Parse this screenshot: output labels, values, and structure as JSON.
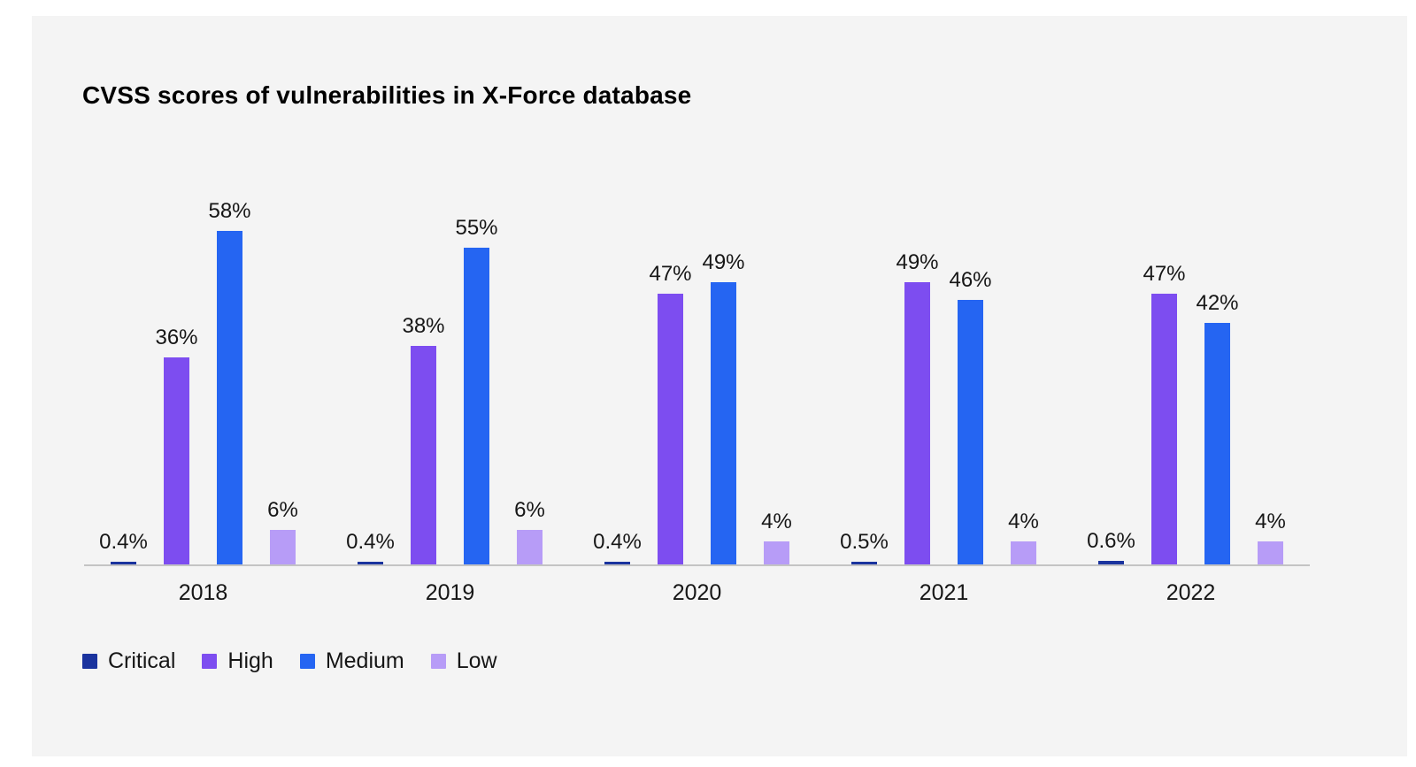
{
  "window": {
    "page_background": "#ffffff",
    "panel_background": "#f4f4f4",
    "axis_line_color": "#c4c4c4",
    "label_color": "#161616"
  },
  "chart_data": {
    "type": "bar",
    "title": "CVSS scores of vulnerabilities in X-Force database",
    "categories": [
      "2018",
      "2019",
      "2020",
      "2021",
      "2022"
    ],
    "series": [
      {
        "name": "Critical",
        "color": "#1a339e",
        "values": [
          0.4,
          0.4,
          0.4,
          0.5,
          0.6
        ],
        "labels": [
          "0.4%",
          "0.4%",
          "0.4%",
          "0.5%",
          "0.6%"
        ]
      },
      {
        "name": "High",
        "color": "#7d4df0",
        "values": [
          36,
          38,
          47,
          49,
          47
        ],
        "labels": [
          "36%",
          "38%",
          "47%",
          "49%",
          "47%"
        ]
      },
      {
        "name": "Medium",
        "color": "#2565f2",
        "values": [
          58,
          55,
          49,
          46,
          42
        ],
        "labels": [
          "58%",
          "55%",
          "49%",
          "46%",
          "42%"
        ]
      },
      {
        "name": "Low",
        "color": "#b79cf7",
        "values": [
          6,
          6,
          4,
          4,
          4
        ],
        "labels": [
          "6%",
          "6%",
          "4%",
          "4%",
          "4%"
        ]
      }
    ],
    "unit": "%",
    "ylim": [
      0,
      60
    ],
    "grid": false,
    "y_axis_shown": false,
    "legend_position": "bottom-left",
    "legend_labels": [
      "Critical",
      "High",
      "Medium",
      "Low"
    ]
  }
}
